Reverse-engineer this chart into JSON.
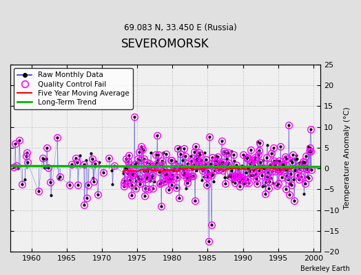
{
  "title": "SEVEROMORSK",
  "subtitle": "69.083 N, 33.450 E (Russia)",
  "ylabel": "Temperature Anomaly (°C)",
  "watermark": "Berkeley Earth",
  "xlim": [
    1957,
    2001
  ],
  "ylim": [
    -20,
    25
  ],
  "yticks": [
    -20,
    -15,
    -10,
    -5,
    0,
    5,
    10,
    15,
    20,
    25
  ],
  "xticks": [
    1960,
    1965,
    1970,
    1975,
    1980,
    1985,
    1990,
    1995,
    2000
  ],
  "bg_color": "#e0e0e0",
  "plot_bg_color": "#f0f0f0",
  "line_color": "#3333cc",
  "qc_color": "#ff00ff",
  "moving_avg_color": "#ff0000",
  "trend_color": "#00bb00",
  "seed": 12
}
